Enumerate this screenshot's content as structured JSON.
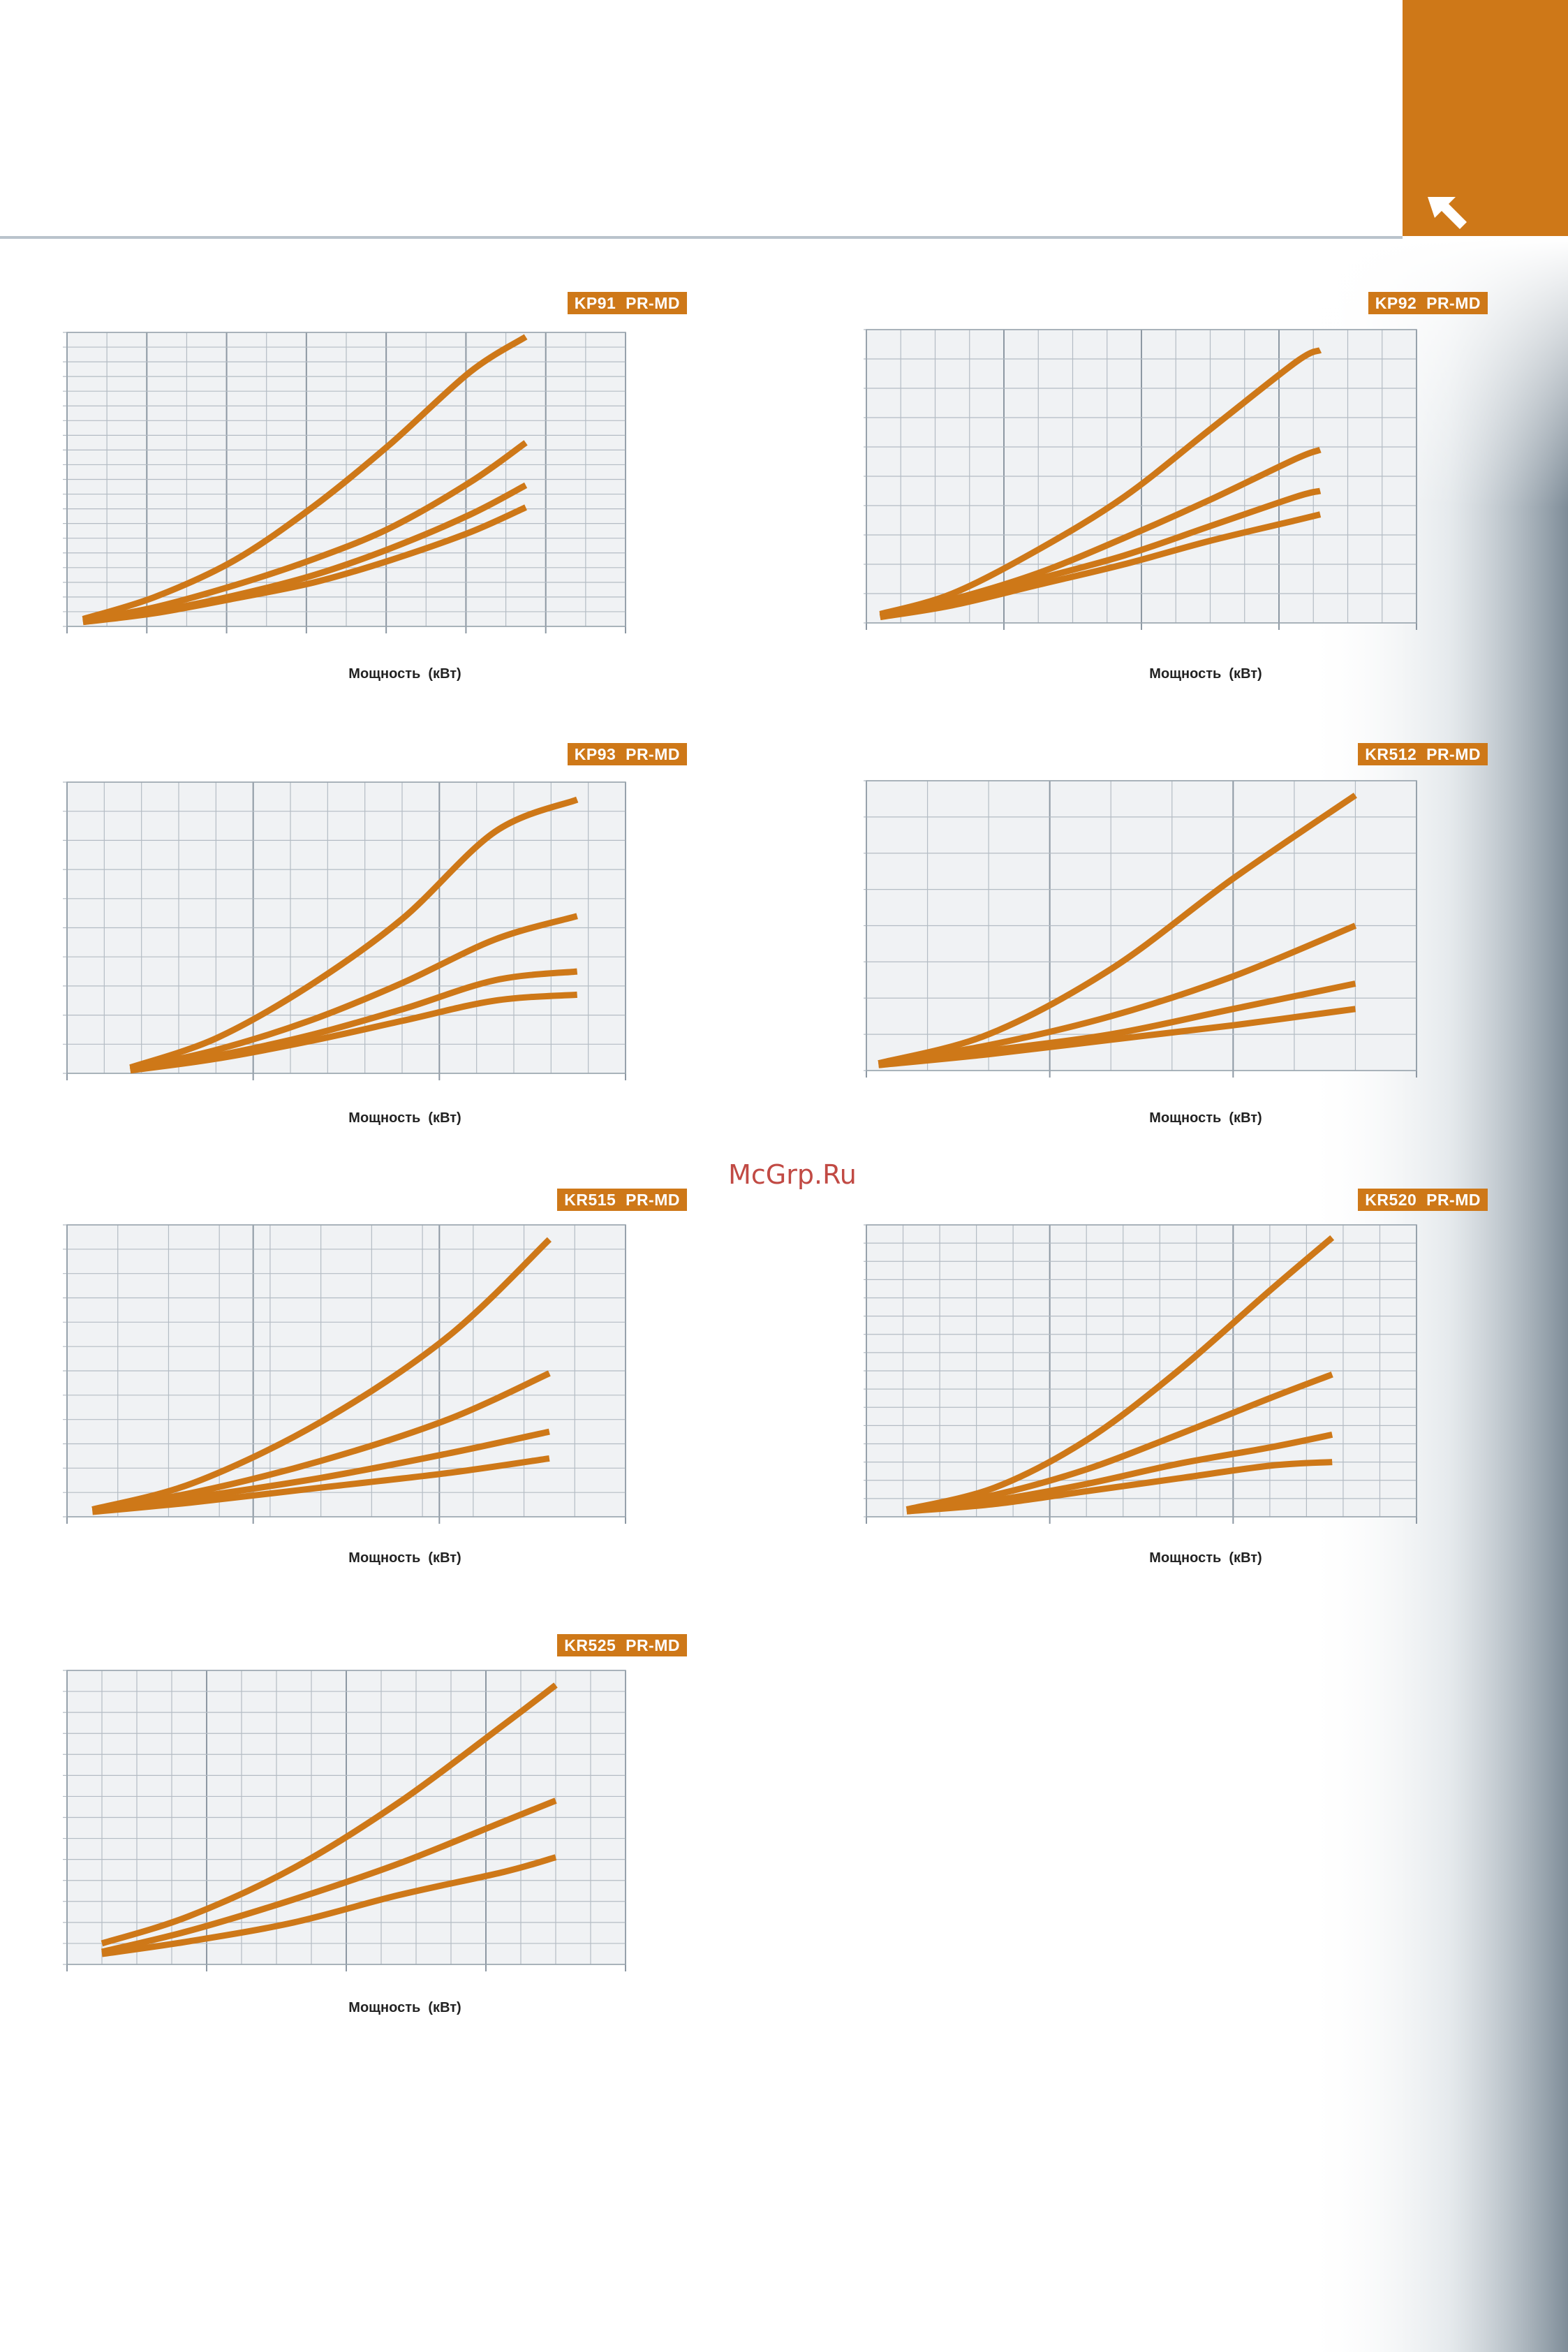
{
  "page": {
    "watermark": "McGrp.Ru",
    "brand_color": "#ce7818",
    "grid_background": "#f0f2f4",
    "grid_line_color": "#b4bcc4",
    "corner_icon": "arrow-up-left-icon"
  },
  "chart_data": [
    {
      "type": "line",
      "title": "KP91  PR-MD",
      "xlabel": "Мощность  (кВт)",
      "ylabel": "",
      "grid": true,
      "x_major_divisions": 7,
      "x_minor_divisions": 14,
      "y_divisions": 20,
      "xlim": [
        0,
        14
      ],
      "ylim": [
        0,
        20
      ],
      "series": [
        {
          "x": [
            0.4,
            2.2,
            4.2,
            6.2,
            8.1,
            10.1,
            11.5
          ],
          "values": [
            0.5,
            2.0,
            4.5,
            8.2,
            12.4,
            17.3,
            19.7
          ]
        },
        {
          "x": [
            0.4,
            2.2,
            4.2,
            6.2,
            8.1,
            10.1,
            11.5
          ],
          "values": [
            0.4,
            1.3,
            2.8,
            4.6,
            6.7,
            9.8,
            12.5
          ]
        },
        {
          "x": [
            0.4,
            2.2,
            4.2,
            6.2,
            8.1,
            10.1,
            11.5
          ],
          "values": [
            0.3,
            1.0,
            2.1,
            3.5,
            5.3,
            7.6,
            9.6
          ]
        },
        {
          "x": [
            0.4,
            2.2,
            4.2,
            6.2,
            8.1,
            10.1,
            11.5
          ],
          "values": [
            0.3,
            0.9,
            1.9,
            3.0,
            4.5,
            6.4,
            8.1
          ]
        }
      ]
    },
    {
      "type": "line",
      "title": "KP92  PR-MD",
      "xlabel": "Мощность  (кВт)",
      "ylabel": "",
      "grid": true,
      "x_major_divisions": 4,
      "x_minor_divisions": 16,
      "y_divisions": 10,
      "xlim": [
        0,
        16
      ],
      "ylim": [
        0,
        10
      ],
      "series": [
        {
          "x": [
            0.4,
            2.5,
            5.0,
            7.5,
            10.0,
            12.5,
            13.2
          ],
          "values": [
            0.3,
            1.0,
            2.5,
            4.3,
            6.6,
            8.9,
            9.3
          ]
        },
        {
          "x": [
            0.4,
            2.5,
            5.0,
            7.5,
            10.0,
            12.5,
            13.2
          ],
          "values": [
            0.25,
            0.8,
            1.7,
            2.9,
            4.2,
            5.6,
            5.9
          ]
        },
        {
          "x": [
            0.4,
            2.5,
            5.0,
            7.5,
            10.0,
            12.5,
            13.2
          ],
          "values": [
            0.2,
            0.7,
            1.5,
            2.3,
            3.3,
            4.3,
            4.5
          ]
        },
        {
          "x": [
            0.4,
            2.5,
            5.0,
            7.5,
            10.0,
            12.5,
            13.2
          ],
          "values": [
            0.2,
            0.6,
            1.3,
            2.0,
            2.8,
            3.5,
            3.7
          ]
        }
      ]
    },
    {
      "type": "line",
      "title": "KP93  PR-MD",
      "xlabel": "Мощность  (кВт)",
      "ylabel": "",
      "grid": true,
      "x_major_divisions": 3,
      "x_minor_divisions": 15,
      "y_divisions": 10,
      "xlim": [
        0,
        15
      ],
      "ylim": [
        0,
        10
      ],
      "series": [
        {
          "x": [
            1.7,
            4.0,
            6.5,
            9.0,
            11.5,
            13.7
          ],
          "values": [
            0.2,
            1.2,
            3.0,
            5.3,
            8.3,
            9.4
          ]
        },
        {
          "x": [
            1.7,
            4.0,
            6.5,
            9.0,
            11.5,
            13.7
          ],
          "values": [
            0.15,
            0.8,
            1.8,
            3.1,
            4.6,
            5.4
          ]
        },
        {
          "x": [
            1.7,
            4.0,
            6.5,
            9.0,
            11.5,
            13.7
          ],
          "values": [
            0.1,
            0.6,
            1.3,
            2.2,
            3.2,
            3.5
          ]
        },
        {
          "x": [
            1.7,
            4.0,
            6.5,
            9.0,
            11.5,
            13.7
          ],
          "values": [
            0.1,
            0.5,
            1.1,
            1.8,
            2.5,
            2.7
          ]
        }
      ]
    },
    {
      "type": "line",
      "title": "KR512  PR-MD",
      "xlabel": "Мощность  (кВт)",
      "ylabel": "",
      "grid": true,
      "x_major_divisions": 3,
      "x_minor_divisions": 9,
      "y_divisions": 8,
      "xlim": [
        0,
        9
      ],
      "ylim": [
        0,
        8
      ],
      "series": [
        {
          "x": [
            0.2,
            2.0,
            4.0,
            6.0,
            8.0
          ],
          "values": [
            0.2,
            1.0,
            2.8,
            5.3,
            7.6
          ]
        },
        {
          "x": [
            0.2,
            2.0,
            4.0,
            6.0,
            8.0
          ],
          "values": [
            0.2,
            0.7,
            1.5,
            2.6,
            4.0
          ]
        },
        {
          "x": [
            0.2,
            2.0,
            4.0,
            6.0,
            8.0
          ],
          "values": [
            0.15,
            0.55,
            1.0,
            1.7,
            2.4
          ]
        },
        {
          "x": [
            0.2,
            2.0,
            4.0,
            6.0,
            8.0
          ],
          "values": [
            0.15,
            0.45,
            0.85,
            1.25,
            1.7
          ]
        }
      ]
    },
    {
      "type": "line",
      "title": "KR515  PR-MD",
      "xlabel": "Мощность  (кВт)",
      "ylabel": "",
      "grid": true,
      "x_major_divisions": 3,
      "x_minor_divisions": 11,
      "y_divisions": 12,
      "xlim": [
        0,
        11
      ],
      "ylim": [
        0,
        12
      ],
      "series": [
        {
          "x": [
            0.5,
            2.5,
            5.0,
            7.5,
            9.5
          ],
          "values": [
            0.3,
            1.4,
            3.9,
            7.4,
            11.4
          ]
        },
        {
          "x": [
            0.5,
            2.5,
            5.0,
            7.5,
            9.5
          ],
          "values": [
            0.3,
            1.0,
            2.3,
            4.0,
            5.9
          ]
        },
        {
          "x": [
            0.5,
            2.5,
            5.0,
            7.5,
            9.5
          ],
          "values": [
            0.25,
            0.8,
            1.6,
            2.6,
            3.5
          ]
        },
        {
          "x": [
            0.5,
            2.5,
            5.0,
            7.5,
            9.5
          ],
          "values": [
            0.2,
            0.6,
            1.2,
            1.8,
            2.4
          ]
        }
      ]
    },
    {
      "type": "line",
      "title": "KR520  PR-MD",
      "xlabel": "Мощность  (кВт)",
      "ylabel": "",
      "grid": true,
      "x_major_divisions": 3,
      "x_minor_divisions": 15,
      "y_divisions": 16,
      "xlim": [
        0,
        15
      ],
      "ylim": [
        0,
        16
      ],
      "series": [
        {
          "x": [
            1.1,
            3.5,
            6.0,
            8.5,
            11.0,
            12.7
          ],
          "values": [
            0.4,
            1.6,
            4.2,
            8.0,
            12.4,
            15.3
          ]
        },
        {
          "x": [
            1.1,
            3.5,
            6.0,
            8.5,
            11.0,
            12.7
          ],
          "values": [
            0.4,
            1.2,
            2.6,
            4.5,
            6.5,
            7.8
          ]
        },
        {
          "x": [
            1.1,
            3.5,
            6.0,
            8.5,
            11.0,
            12.7
          ],
          "values": [
            0.3,
            0.9,
            1.8,
            2.9,
            3.8,
            4.5
          ]
        },
        {
          "x": [
            1.1,
            3.5,
            6.0,
            8.5,
            11.0,
            12.7
          ],
          "values": [
            0.3,
            0.7,
            1.4,
            2.1,
            2.8,
            3.0
          ]
        }
      ]
    },
    {
      "type": "line",
      "title": "KR525  PR-MD",
      "xlabel": "Мощность  (кВт)",
      "ylabel": "",
      "grid": true,
      "x_major_divisions": 4,
      "x_minor_divisions": 16,
      "y_divisions": 14,
      "xlim": [
        0,
        16
      ],
      "ylim": [
        0,
        14
      ],
      "series": [
        {
          "x": [
            1.0,
            3.5,
            6.5,
            9.5,
            12.5,
            14.0
          ],
          "values": [
            1.0,
            2.3,
            4.6,
            7.7,
            11.4,
            13.3
          ]
        },
        {
          "x": [
            1.0,
            3.5,
            6.5,
            9.5,
            12.5,
            14.0
          ],
          "values": [
            0.6,
            1.6,
            3.1,
            4.8,
            6.8,
            7.8
          ]
        },
        {
          "x": [
            1.0,
            3.5,
            6.5,
            9.5,
            12.5,
            14.0
          ],
          "values": [
            0.5,
            1.1,
            2.0,
            3.3,
            4.4,
            5.1
          ]
        }
      ]
    }
  ]
}
